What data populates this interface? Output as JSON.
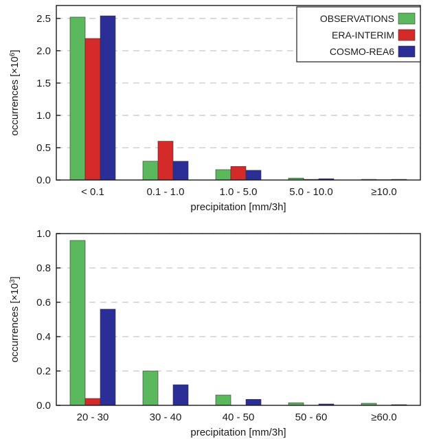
{
  "chart_data": [
    {
      "type": "bar",
      "categories": [
        "< 0.1",
        "0.1 - 1.0",
        "1.0 - 5.0",
        "5.0 - 10.0",
        "≥10.0"
      ],
      "series": [
        {
          "name": "OBSERVATIONS",
          "color": "#5cb85c",
          "values": [
            2.52,
            0.29,
            0.16,
            0.03,
            0.01
          ]
        },
        {
          "name": "ERA-INTERIM",
          "color": "#d42a2a",
          "values": [
            2.19,
            0.6,
            0.21,
            0.01,
            0.005
          ]
        },
        {
          "name": "COSMO-REA6",
          "color": "#2b2e96",
          "values": [
            2.54,
            0.29,
            0.15,
            0.02,
            0.01
          ]
        }
      ],
      "xlabel": "precipitation [mm/3h]",
      "ylabel": {
        "text": "occurrences [×10",
        "exponent": "6",
        "close": "]"
      },
      "ylim": [
        0,
        2.7
      ],
      "yticks": [
        0.0,
        0.5,
        1.0,
        1.5,
        2.0,
        2.5
      ],
      "ytick_labels": [
        "0.0",
        "0.5",
        "1.0",
        "1.5",
        "2.0",
        "2.5"
      ],
      "grid": true,
      "legend": {
        "placement": "top-right",
        "entries": [
          "OBSERVATIONS",
          "ERA-INTERIM",
          "COSMO-REA6"
        ]
      }
    },
    {
      "type": "bar",
      "categories": [
        "20 - 30",
        "30 - 40",
        "40 - 50",
        "50 - 60",
        "≥60.0"
      ],
      "series": [
        {
          "name": "OBSERVATIONS",
          "color": "#5cb85c",
          "values": [
            0.96,
            0.2,
            0.06,
            0.015,
            0.012
          ]
        },
        {
          "name": "ERA-INTERIM",
          "color": "#d42a2a",
          "values": [
            0.04,
            0.0,
            0.0,
            0.0,
            0.0
          ]
        },
        {
          "name": "COSMO-REA6",
          "color": "#2b2e96",
          "values": [
            0.56,
            0.12,
            0.035,
            0.008,
            0.004
          ]
        }
      ],
      "xlabel": "precipitation [mm/3h]",
      "ylabel": {
        "text": "occurrences [×10",
        "exponent": "3",
        "close": "]"
      },
      "ylim": [
        0,
        1.0
      ],
      "yticks": [
        0.0,
        0.2,
        0.4,
        0.6,
        0.8,
        1.0
      ],
      "ytick_labels": [
        "0.0",
        "0.2",
        "0.4",
        "0.6",
        "0.8",
        "1.0"
      ],
      "grid": true
    }
  ]
}
